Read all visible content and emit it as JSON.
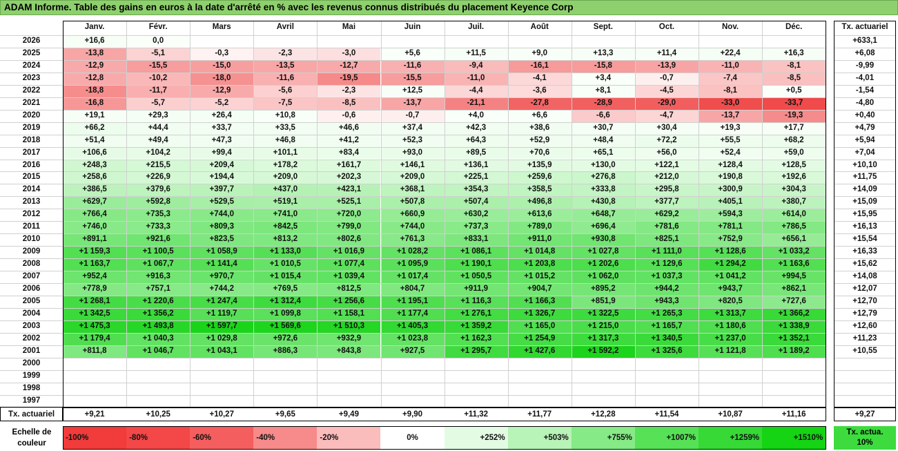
{
  "title": "ADAM Informe. Table des gains en euros à la date d'arrêté en % avec les revenus connus distribués du placement Keyence Corp",
  "chart_data": {
    "type": "table",
    "months": [
      "Janv.",
      "Févr.",
      "Mars",
      "Avril",
      "Mai",
      "Juin",
      "Juil.",
      "Août",
      "Sept.",
      "Oct.",
      "Nov.",
      "Déc."
    ],
    "actuarial_header": "Tx. actuariel",
    "rows": [
      {
        "year": "2026",
        "values": [
          "+16,6",
          "0,0",
          "",
          "",
          "",
          "",
          "",
          "",
          "",
          "",
          "",
          ""
        ],
        "nums": [
          16.6,
          0,
          null,
          null,
          null,
          null,
          null,
          null,
          null,
          null,
          null,
          null
        ],
        "rate": "+633,1"
      },
      {
        "year": "2025",
        "values": [
          "-13,8",
          "-5,1",
          "-0,3",
          "-2,3",
          "-3,0",
          "+5,6",
          "+11,5",
          "+9,0",
          "+13,3",
          "+11,4",
          "+22,4",
          "+16,3"
        ],
        "nums": [
          -13.8,
          -5.1,
          -0.3,
          -2.3,
          -3.0,
          5.6,
          11.5,
          9.0,
          13.3,
          11.4,
          22.4,
          16.3
        ],
        "rate": "+6,08"
      },
      {
        "year": "2024",
        "values": [
          "-12,9",
          "-15,5",
          "-15,0",
          "-13,5",
          "-12,7",
          "-11,6",
          "-9,4",
          "-16,1",
          "-15,8",
          "-13,9",
          "-11,0",
          "-8,1"
        ],
        "nums": [
          -12.9,
          -15.5,
          -15.0,
          -13.5,
          -12.7,
          -11.6,
          -9.4,
          -16.1,
          -15.8,
          -13.9,
          -11.0,
          -8.1
        ],
        "rate": "-9,99"
      },
      {
        "year": "2023",
        "values": [
          "-12,8",
          "-10,2",
          "-18,0",
          "-11,6",
          "-19,5",
          "-15,5",
          "-11,0",
          "-4,1",
          "+3,4",
          "-0,7",
          "-7,4",
          "-8,5"
        ],
        "nums": [
          -12.8,
          -10.2,
          -18.0,
          -11.6,
          -19.5,
          -15.5,
          -11.0,
          -4.1,
          3.4,
          -0.7,
          -7.4,
          -8.5
        ],
        "rate": "-4,01"
      },
      {
        "year": "2022",
        "values": [
          "-18,8",
          "-11,7",
          "-12,9",
          "-5,6",
          "-2,3",
          "+12,5",
          "-4,4",
          "-3,6",
          "+8,1",
          "-4,5",
          "-8,1",
          "+0,5"
        ],
        "nums": [
          -18.8,
          -11.7,
          -12.9,
          -5.6,
          -2.3,
          12.5,
          -4.4,
          -3.6,
          8.1,
          -4.5,
          -8.1,
          0.5
        ],
        "rate": "-1,54"
      },
      {
        "year": "2021",
        "values": [
          "-16,8",
          "-5,7",
          "-5,2",
          "-7,5",
          "-8,5",
          "-13,7",
          "-21,1",
          "-27,8",
          "-28,9",
          "-29,0",
          "-33,0",
          "-33,7"
        ],
        "nums": [
          -16.8,
          -5.7,
          -5.2,
          -7.5,
          -8.5,
          -13.7,
          -21.1,
          -27.8,
          -28.9,
          -29.0,
          -33.0,
          -33.7
        ],
        "rate": "-4,80"
      },
      {
        "year": "2020",
        "values": [
          "+19,1",
          "+29,3",
          "+26,4",
          "+10,8",
          "-0,6",
          "-0,7",
          "+4,0",
          "+6,6",
          "-6,6",
          "-4,7",
          "-13,7",
          "-19,3"
        ],
        "nums": [
          19.1,
          29.3,
          26.4,
          10.8,
          -0.6,
          -0.7,
          4.0,
          6.6,
          -6.6,
          -4.7,
          -13.7,
          -19.3
        ],
        "rate": "+0,40"
      },
      {
        "year": "2019",
        "values": [
          "+66,2",
          "+44,4",
          "+33,7",
          "+33,5",
          "+46,6",
          "+37,4",
          "+42,3",
          "+38,6",
          "+30,7",
          "+30,4",
          "+19,3",
          "+17,7"
        ],
        "nums": [
          66.2,
          44.4,
          33.7,
          33.5,
          46.6,
          37.4,
          42.3,
          38.6,
          30.7,
          30.4,
          19.3,
          17.7
        ],
        "rate": "+4,79"
      },
      {
        "year": "2018",
        "values": [
          "+51,4",
          "+49,4",
          "+47,3",
          "+46,8",
          "+41,2",
          "+52,3",
          "+64,3",
          "+52,9",
          "+48,4",
          "+72,2",
          "+55,5",
          "+68,2"
        ],
        "nums": [
          51.4,
          49.4,
          47.3,
          46.8,
          41.2,
          52.3,
          64.3,
          52.9,
          48.4,
          72.2,
          55.5,
          68.2
        ],
        "rate": "+5,94"
      },
      {
        "year": "2017",
        "values": [
          "+106,6",
          "+104,2",
          "+99,4",
          "+101,1",
          "+83,4",
          "+93,0",
          "+89,5",
          "+70,6",
          "+65,1",
          "+56,0",
          "+52,4",
          "+59,0"
        ],
        "nums": [
          106.6,
          104.2,
          99.4,
          101.1,
          83.4,
          93.0,
          89.5,
          70.6,
          65.1,
          56.0,
          52.4,
          59.0
        ],
        "rate": "+7,04"
      },
      {
        "year": "2016",
        "values": [
          "+248,3",
          "+215,5",
          "+209,4",
          "+178,2",
          "+161,7",
          "+146,1",
          "+136,1",
          "+135,9",
          "+130,0",
          "+122,1",
          "+128,4",
          "+128,5"
        ],
        "nums": [
          248.3,
          215.5,
          209.4,
          178.2,
          161.7,
          146.1,
          136.1,
          135.9,
          130.0,
          122.1,
          128.4,
          128.5
        ],
        "rate": "+10,10"
      },
      {
        "year": "2015",
        "values": [
          "+258,6",
          "+226,9",
          "+194,4",
          "+209,0",
          "+202,3",
          "+209,0",
          "+225,1",
          "+259,6",
          "+276,8",
          "+212,0",
          "+190,8",
          "+192,6"
        ],
        "nums": [
          258.6,
          226.9,
          194.4,
          209.0,
          202.3,
          209.0,
          225.1,
          259.6,
          276.8,
          212.0,
          190.8,
          192.6
        ],
        "rate": "+11,75"
      },
      {
        "year": "2014",
        "values": [
          "+386,5",
          "+379,6",
          "+397,7",
          "+437,0",
          "+423,1",
          "+368,1",
          "+354,3",
          "+358,5",
          "+333,8",
          "+295,8",
          "+300,9",
          "+304,3"
        ],
        "nums": [
          386.5,
          379.6,
          397.7,
          437.0,
          423.1,
          368.1,
          354.3,
          358.5,
          333.8,
          295.8,
          300.9,
          304.3
        ],
        "rate": "+14,09"
      },
      {
        "year": "2013",
        "values": [
          "+629,7",
          "+592,8",
          "+529,5",
          "+519,1",
          "+525,1",
          "+507,8",
          "+507,4",
          "+496,8",
          "+430,8",
          "+377,7",
          "+405,1",
          "+380,7"
        ],
        "nums": [
          629.7,
          592.8,
          529.5,
          519.1,
          525.1,
          507.8,
          507.4,
          496.8,
          430.8,
          377.7,
          405.1,
          380.7
        ],
        "rate": "+15,09"
      },
      {
        "year": "2012",
        "values": [
          "+766,4",
          "+735,3",
          "+744,0",
          "+741,0",
          "+720,0",
          "+660,9",
          "+630,2",
          "+613,6",
          "+648,7",
          "+629,2",
          "+594,3",
          "+614,0"
        ],
        "nums": [
          766.4,
          735.3,
          744.0,
          741.0,
          720.0,
          660.9,
          630.2,
          613.6,
          648.7,
          629.2,
          594.3,
          614.0
        ],
        "rate": "+15,95"
      },
      {
        "year": "2011",
        "values": [
          "+746,0",
          "+733,3",
          "+809,3",
          "+842,5",
          "+799,0",
          "+744,0",
          "+737,3",
          "+789,0",
          "+696,4",
          "+781,6",
          "+781,1",
          "+786,5"
        ],
        "nums": [
          746.0,
          733.3,
          809.3,
          842.5,
          799.0,
          744.0,
          737.3,
          789.0,
          696.4,
          781.6,
          781.1,
          786.5
        ],
        "rate": "+16,13"
      },
      {
        "year": "2010",
        "values": [
          "+891,1",
          "+921,6",
          "+823,5",
          "+813,2",
          "+802,6",
          "+761,3",
          "+833,1",
          "+911,0",
          "+930,8",
          "+825,1",
          "+752,9",
          "+656,1"
        ],
        "nums": [
          891.1,
          921.6,
          823.5,
          813.2,
          802.6,
          761.3,
          833.1,
          911.0,
          930.8,
          825.1,
          752.9,
          656.1
        ],
        "rate": "+15,54"
      },
      {
        "year": "2009",
        "values": [
          "+1 159,3",
          "+1 100,5",
          "+1 058,9",
          "+1 133,0",
          "+1 016,9",
          "+1 028,2",
          "+1 086,1",
          "+1 014,8",
          "+1 027,8",
          "+1 111,0",
          "+1 128,6",
          "+1 033,2"
        ],
        "nums": [
          1159.3,
          1100.5,
          1058.9,
          1133.0,
          1016.9,
          1028.2,
          1086.1,
          1014.8,
          1027.8,
          1111.0,
          1128.6,
          1033.2
        ],
        "rate": "+16,33"
      },
      {
        "year": "2008",
        "values": [
          "+1 163,7",
          "+1 067,7",
          "+1 141,4",
          "+1 010,5",
          "+1 077,4",
          "+1 095,9",
          "+1 190,1",
          "+1 203,8",
          "+1 202,6",
          "+1 129,6",
          "+1 294,2",
          "+1 163,6"
        ],
        "nums": [
          1163.7,
          1067.7,
          1141.4,
          1010.5,
          1077.4,
          1095.9,
          1190.1,
          1203.8,
          1202.6,
          1129.6,
          1294.2,
          1163.6
        ],
        "rate": "+15,62"
      },
      {
        "year": "2007",
        "values": [
          "+952,4",
          "+916,3",
          "+970,7",
          "+1 015,4",
          "+1 039,4",
          "+1 017,4",
          "+1 050,5",
          "+1 015,2",
          "+1 062,0",
          "+1 037,3",
          "+1 041,2",
          "+994,5"
        ],
        "nums": [
          952.4,
          916.3,
          970.7,
          1015.4,
          1039.4,
          1017.4,
          1050.5,
          1015.2,
          1062.0,
          1037.3,
          1041.2,
          994.5
        ],
        "rate": "+14,08"
      },
      {
        "year": "2006",
        "values": [
          "+778,9",
          "+757,1",
          "+744,2",
          "+769,5",
          "+812,5",
          "+804,7",
          "+911,9",
          "+904,7",
          "+895,2",
          "+944,2",
          "+943,7",
          "+862,1"
        ],
        "nums": [
          778.9,
          757.1,
          744.2,
          769.5,
          812.5,
          804.7,
          911.9,
          904.7,
          895.2,
          944.2,
          943.7,
          862.1
        ],
        "rate": "+12,07"
      },
      {
        "year": "2005",
        "values": [
          "+1 268,1",
          "+1 220,6",
          "+1 247,4",
          "+1 312,4",
          "+1 256,6",
          "+1 195,1",
          "+1 116,3",
          "+1 166,3",
          "+851,9",
          "+943,3",
          "+820,5",
          "+727,6"
        ],
        "nums": [
          1268.1,
          1220.6,
          1247.4,
          1312.4,
          1256.6,
          1195.1,
          1116.3,
          1166.3,
          851.9,
          943.3,
          820.5,
          727.6
        ],
        "rate": "+12,70"
      },
      {
        "year": "2004",
        "values": [
          "+1 342,5",
          "+1 356,2",
          "+1 119,7",
          "+1 099,8",
          "+1 158,1",
          "+1 177,4",
          "+1 276,1",
          "+1 326,7",
          "+1 322,5",
          "+1 265,3",
          "+1 313,7",
          "+1 366,2"
        ],
        "nums": [
          1342.5,
          1356.2,
          1119.7,
          1099.8,
          1158.1,
          1177.4,
          1276.1,
          1326.7,
          1322.5,
          1265.3,
          1313.7,
          1366.2
        ],
        "rate": "+12,79"
      },
      {
        "year": "2003",
        "values": [
          "+1 475,3",
          "+1 493,8",
          "+1 597,7",
          "+1 569,6",
          "+1 510,3",
          "+1 405,3",
          "+1 359,2",
          "+1 165,0",
          "+1 215,0",
          "+1 165,7",
          "+1 180,6",
          "+1 338,9"
        ],
        "nums": [
          1475.3,
          1493.8,
          1597.7,
          1569.6,
          1510.3,
          1405.3,
          1359.2,
          1165.0,
          1215.0,
          1165.7,
          1180.6,
          1338.9
        ],
        "rate": "+12,60"
      },
      {
        "year": "2002",
        "values": [
          "+1 179,4",
          "+1 040,3",
          "+1 029,8",
          "+972,6",
          "+932,9",
          "+1 023,8",
          "+1 162,3",
          "+1 254,9",
          "+1 317,3",
          "+1 340,5",
          "+1 237,0",
          "+1 352,1"
        ],
        "nums": [
          1179.4,
          1040.3,
          1029.8,
          972.6,
          932.9,
          1023.8,
          1162.3,
          1254.9,
          1317.3,
          1340.5,
          1237.0,
          1352.1
        ],
        "rate": "+11,23"
      },
      {
        "year": "2001",
        "values": [
          "+811,8",
          "+1 046,7",
          "+1 043,1",
          "+886,3",
          "+843,8",
          "+927,5",
          "+1 295,7",
          "+1 427,6",
          "+1 592,2",
          "+1 325,6",
          "+1 121,8",
          "+1 189,2"
        ],
        "nums": [
          811.8,
          1046.7,
          1043.1,
          886.3,
          843.8,
          927.5,
          1295.7,
          1427.6,
          1592.2,
          1325.6,
          1121.8,
          1189.2
        ],
        "rate": "+10,55"
      },
      {
        "year": "2000",
        "values": [
          "",
          "",
          "",
          "",
          "",
          "",
          "",
          "",
          "",
          "",
          "",
          ""
        ],
        "nums": [
          null,
          null,
          null,
          null,
          null,
          null,
          null,
          null,
          null,
          null,
          null,
          null
        ],
        "rate": ""
      },
      {
        "year": "1999",
        "values": [
          "",
          "",
          "",
          "",
          "",
          "",
          "",
          "",
          "",
          "",
          "",
          ""
        ],
        "nums": [
          null,
          null,
          null,
          null,
          null,
          null,
          null,
          null,
          null,
          null,
          null,
          null
        ],
        "rate": ""
      },
      {
        "year": "1998",
        "values": [
          "",
          "",
          "",
          "",
          "",
          "",
          "",
          "",
          "",
          "",
          "",
          ""
        ],
        "nums": [
          null,
          null,
          null,
          null,
          null,
          null,
          null,
          null,
          null,
          null,
          null,
          null
        ],
        "rate": ""
      },
      {
        "year": "1997",
        "values": [
          "",
          "",
          "",
          "",
          "",
          "",
          "",
          "",
          "",
          "",
          "",
          ""
        ],
        "nums": [
          null,
          null,
          null,
          null,
          null,
          null,
          null,
          null,
          null,
          null,
          null,
          null
        ],
        "rate": ""
      }
    ],
    "footer": {
      "label": "Tx. actuariel",
      "values": [
        "+9,21",
        "+10,25",
        "+10,27",
        "+9,65",
        "+9,49",
        "+9,90",
        "+11,32",
        "+11,77",
        "+12,28",
        "+11,54",
        "+10,87",
        "+11,16"
      ],
      "total": "+9,27"
    },
    "scale": {
      "label": "Echelle de couleur",
      "steps": [
        {
          "label": "-100%",
          "color": "#f23b3b",
          "align": "left"
        },
        {
          "label": "-80%",
          "color": "#f44747",
          "align": "left"
        },
        {
          "label": "-60%",
          "color": "#f55e5e",
          "align": "left"
        },
        {
          "label": "-40%",
          "color": "#f78a8a",
          "align": "left"
        },
        {
          "label": "-20%",
          "color": "#fbbcbc",
          "align": "left"
        },
        {
          "label": "0%",
          "color": "#ffffff",
          "align": "center"
        },
        {
          "label": "+252%",
          "color": "#e3fbe3",
          "align": "right"
        },
        {
          "label": "+503%",
          "color": "#b8f3b8",
          "align": "right"
        },
        {
          "label": "+755%",
          "color": "#86ea86",
          "align": "right"
        },
        {
          "label": "+1007%",
          "color": "#57e157",
          "align": "right"
        },
        {
          "label": "+1259%",
          "color": "#36d936",
          "align": "right"
        },
        {
          "label": "+1510%",
          "color": "#14d414",
          "align": "right"
        }
      ],
      "legend_box": "Tx. actua. 10%",
      "legend_color": "#3ddb3d"
    },
    "colors": {
      "neg_max": "#f04a4a",
      "pos_max": "#1ad41a",
      "title_bg": "#8fd06e"
    }
  }
}
